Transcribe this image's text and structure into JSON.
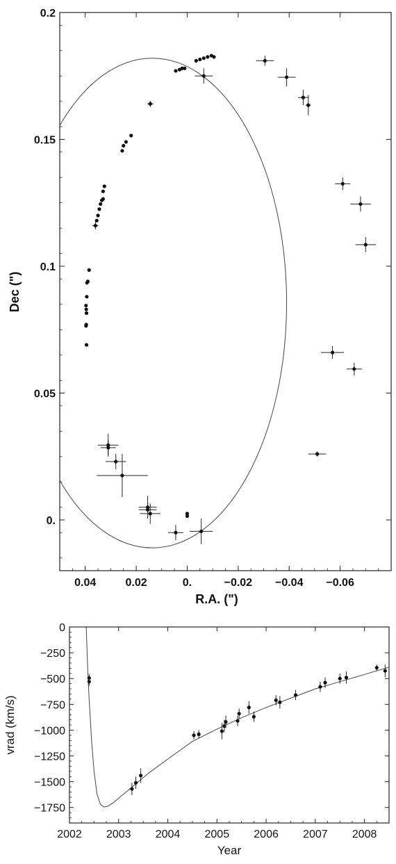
{
  "chart_data": [
    {
      "type": "scatter",
      "title": "",
      "xlabel": "R.A. (\")",
      "ylabel": "Dec (\")",
      "xlim": [
        0.05,
        -0.08
      ],
      "ylim": [
        -0.02,
        0.2
      ],
      "x_ticks": [
        0.04,
        0.02,
        0.0,
        -0.02,
        -0.04,
        -0.06
      ],
      "x_tick_labels": [
        "0.04",
        "0.02",
        "0.",
        "−0.02",
        "−0.04",
        "−0.06"
      ],
      "y_ticks": [
        0.0,
        0.05,
        0.1,
        0.15,
        0.2
      ],
      "y_tick_labels": [
        "0.",
        "0.05",
        "0.1",
        "0.15",
        "0.2"
      ],
      "orbit_ellipse": {
        "center_ra": 0.0137,
        "center_dec": 0.0855,
        "semi_ra": 0.0527,
        "semi_dec": 0.0965
      },
      "points": [
        {
          "x": 0.0395,
          "y": 0.069
        },
        {
          "x": 0.0397,
          "y": 0.0765
        },
        {
          "x": 0.0396,
          "y": 0.077
        },
        {
          "x": 0.0395,
          "y": 0.0815
        },
        {
          "x": 0.0396,
          "y": 0.083
        },
        {
          "x": 0.0397,
          "y": 0.0845
        },
        {
          "x": 0.0394,
          "y": 0.088
        },
        {
          "x": 0.0393,
          "y": 0.0935
        },
        {
          "x": 0.039,
          "y": 0.094
        },
        {
          "x": 0.0385,
          "y": 0.0985
        },
        {
          "x": 0.036,
          "y": 0.116,
          "ex": 0.0012,
          "ey": 0.0015
        },
        {
          "x": 0.0355,
          "y": 0.118
        },
        {
          "x": 0.035,
          "y": 0.12
        },
        {
          "x": 0.0345,
          "y": 0.1225
        },
        {
          "x": 0.034,
          "y": 0.1245
        },
        {
          "x": 0.0335,
          "y": 0.126
        },
        {
          "x": 0.033,
          "y": 0.1265
        },
        {
          "x": 0.033,
          "y": 0.1295
        },
        {
          "x": 0.0325,
          "y": 0.1315
        },
        {
          "x": 0.0255,
          "y": 0.1455
        },
        {
          "x": 0.025,
          "y": 0.1475
        },
        {
          "x": 0.024,
          "y": 0.149
        },
        {
          "x": 0.022,
          "y": 0.1515
        },
        {
          "x": 0.0145,
          "y": 0.164,
          "ex": 0.0012,
          "ey": 0.0012
        },
        {
          "x": 0.0045,
          "y": 0.177
        },
        {
          "x": 0.003,
          "y": 0.1775
        },
        {
          "x": 0.002,
          "y": 0.178
        },
        {
          "x": 0.001,
          "y": 0.178
        },
        {
          "x": -0.0035,
          "y": 0.181
        },
        {
          "x": -0.005,
          "y": 0.1815
        },
        {
          "x": -0.0065,
          "y": 0.182
        },
        {
          "x": -0.008,
          "y": 0.1825
        },
        {
          "x": -0.0095,
          "y": 0.183
        },
        {
          "x": -0.0105,
          "y": 0.1825
        },
        {
          "x": -0.0065,
          "y": 0.175,
          "ex": 0.0035,
          "ey": 0.003
        },
        {
          "x": -0.0305,
          "y": 0.181,
          "ex": 0.0035,
          "ey": 0.002
        },
        {
          "x": -0.039,
          "y": 0.1745,
          "ex": 0.0035,
          "ey": 0.0035
        },
        {
          "x": -0.0455,
          "y": 0.1665,
          "ex": 0.002,
          "ey": 0.003
        },
        {
          "x": -0.0475,
          "y": 0.1635,
          "ex": 0.001,
          "ey": 0.004
        },
        {
          "x": -0.061,
          "y": 0.1325,
          "ex": 0.003,
          "ey": 0.0025
        },
        {
          "x": -0.068,
          "y": 0.1245,
          "ex": 0.004,
          "ey": 0.003
        },
        {
          "x": -0.07,
          "y": 0.1085,
          "ex": 0.004,
          "ey": 0.003
        },
        {
          "x": -0.057,
          "y": 0.066,
          "ex": 0.0045,
          "ey": 0.0025
        },
        {
          "x": -0.0655,
          "y": 0.0595,
          "ex": 0.003,
          "ey": 0.0025
        },
        {
          "x": -0.051,
          "y": 0.026,
          "ex": 0.0035,
          "ey": 0.001
        },
        {
          "x": 0.031,
          "y": 0.0295,
          "ex": 0.004,
          "ey": 0.0045
        },
        {
          "x": 0.031,
          "y": 0.0285,
          "ex": 0.003,
          "ey": 0.003
        },
        {
          "x": 0.028,
          "y": 0.023,
          "ex": 0.004,
          "ey": 0.003
        },
        {
          "x": 0.0255,
          "y": 0.0175,
          "ex": 0.01,
          "ey": 0.0085
        },
        {
          "x": 0.0155,
          "y": 0.005,
          "ex": 0.0035,
          "ey": 0.0045
        },
        {
          "x": 0.0155,
          "y": 0.004,
          "ex": 0.0035,
          "ey": 0.003
        },
        {
          "x": 0.0145,
          "y": 0.0025,
          "ex": 0.004,
          "ey": 0.004
        },
        {
          "x": 0.0045,
          "y": -0.005,
          "ex": 0.003,
          "ey": 0.003
        },
        {
          "x": 0.0,
          "y": 0.0025
        },
        {
          "x": 0.0,
          "y": 0.0015
        },
        {
          "x": -0.0055,
          "y": -0.0045,
          "ex": 0.0045,
          "ey": 0.005
        }
      ]
    },
    {
      "type": "line",
      "title": "",
      "xlabel": "Year",
      "ylabel": "vrad (km/s)",
      "xlim": [
        2002.0,
        2008.5
      ],
      "ylim": [
        -1900,
        0
      ],
      "x_ticks": [
        2002,
        2003,
        2004,
        2005,
        2006,
        2007,
        2008
      ],
      "x_tick_labels": [
        "2002",
        "2003",
        "2004",
        "2005",
        "2006",
        "2007",
        "2008"
      ],
      "y_ticks": [
        0,
        -250,
        -500,
        -750,
        -1000,
        -1250,
        -1500,
        -1750
      ],
      "y_tick_labels": [
        "0",
        "−250",
        "−500",
        "−750",
        "−1000",
        "−1250",
        "−1500",
        "−1750"
      ],
      "model_curve": [
        {
          "x": 2002.34,
          "y": 0
        },
        {
          "x": 2002.37,
          "y": -400
        },
        {
          "x": 2002.4,
          "y": -700
        },
        {
          "x": 2002.45,
          "y": -1100
        },
        {
          "x": 2002.5,
          "y": -1400
        },
        {
          "x": 2002.56,
          "y": -1620
        },
        {
          "x": 2002.63,
          "y": -1720
        },
        {
          "x": 2002.7,
          "y": -1745
        },
        {
          "x": 2002.78,
          "y": -1738
        },
        {
          "x": 2002.9,
          "y": -1700
        },
        {
          "x": 2003.05,
          "y": -1640
        },
        {
          "x": 2003.3,
          "y": -1540
        },
        {
          "x": 2003.6,
          "y": -1420
        },
        {
          "x": 2004.0,
          "y": -1280
        },
        {
          "x": 2004.5,
          "y": -1110
        },
        {
          "x": 2005.0,
          "y": -990
        },
        {
          "x": 2005.5,
          "y": -880
        },
        {
          "x": 2006.0,
          "y": -780
        },
        {
          "x": 2006.5,
          "y": -690
        },
        {
          "x": 2007.0,
          "y": -600
        },
        {
          "x": 2007.5,
          "y": -530
        },
        {
          "x": 2008.0,
          "y": -460
        },
        {
          "x": 2008.5,
          "y": -390
        }
      ],
      "points": [
        {
          "x": 2002.4,
          "y": -495,
          "ey": 40
        },
        {
          "x": 2002.4,
          "y": -530,
          "ey": 40
        },
        {
          "x": 2003.27,
          "y": -1570,
          "ey": 60
        },
        {
          "x": 2003.35,
          "y": -1510,
          "ey": 60
        },
        {
          "x": 2003.45,
          "y": -1440,
          "ey": 70
        },
        {
          "x": 2004.53,
          "y": -1050,
          "ey": 40
        },
        {
          "x": 2004.63,
          "y": -1040,
          "ey": 40
        },
        {
          "x": 2005.1,
          "y": -1010,
          "ey": 80
        },
        {
          "x": 2005.15,
          "y": -960,
          "ey": 60
        },
        {
          "x": 2005.18,
          "y": -920,
          "ey": 60
        },
        {
          "x": 2005.42,
          "y": -910,
          "ey": 50
        },
        {
          "x": 2005.45,
          "y": -840,
          "ey": 50
        },
        {
          "x": 2005.65,
          "y": -780,
          "ey": 60
        },
        {
          "x": 2005.75,
          "y": -870,
          "ey": 50
        },
        {
          "x": 2006.2,
          "y": -710,
          "ey": 50
        },
        {
          "x": 2006.28,
          "y": -730,
          "ey": 60
        },
        {
          "x": 2006.6,
          "y": -660,
          "ey": 50
        },
        {
          "x": 2007.1,
          "y": -580,
          "ey": 50
        },
        {
          "x": 2007.2,
          "y": -540,
          "ey": 50
        },
        {
          "x": 2007.5,
          "y": -500,
          "ey": 50
        },
        {
          "x": 2007.63,
          "y": -490,
          "ey": 60
        },
        {
          "x": 2008.25,
          "y": -395,
          "ey": 30
        },
        {
          "x": 2008.42,
          "y": -425,
          "ey": 60
        }
      ]
    }
  ]
}
